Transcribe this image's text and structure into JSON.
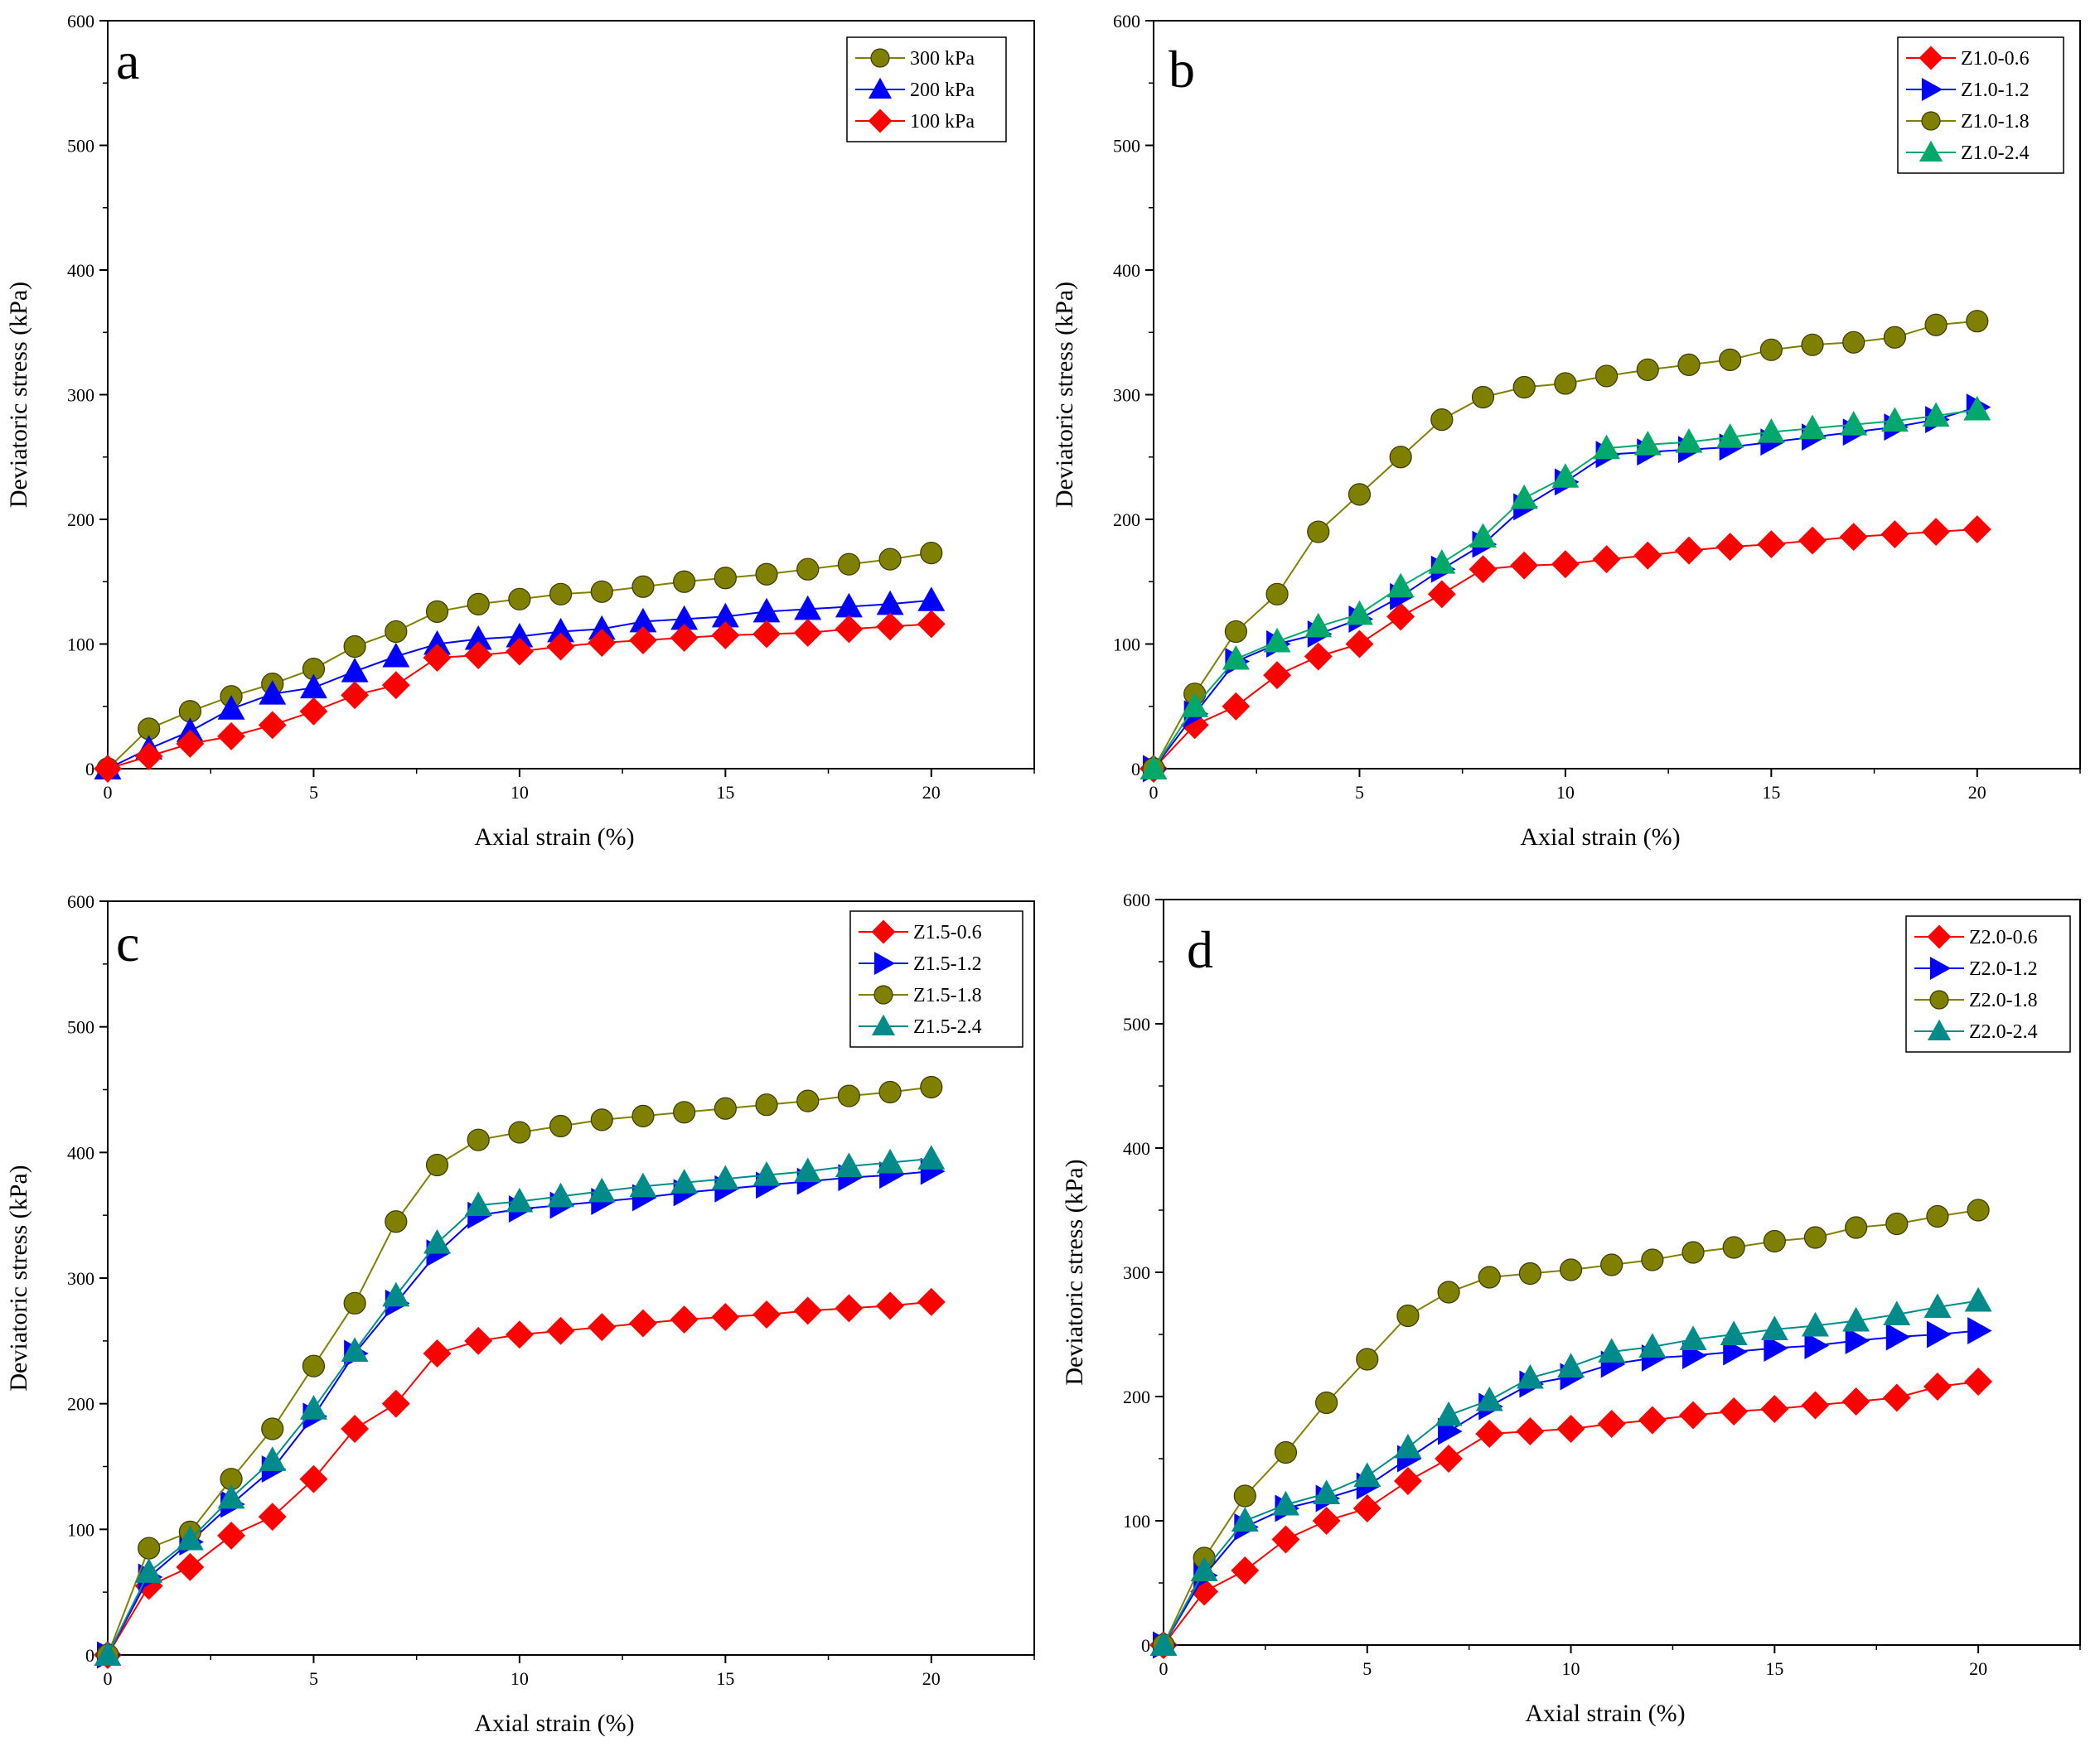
{
  "figure": {
    "chart_data": [
      {
        "type": "line",
        "panel_letter": "a",
        "xlabel": "Axial strain (%)",
        "ylabel": "Deviatoric stress (kPa)",
        "xlim": [
          0,
          22.5
        ],
        "ylim": [
          0,
          600
        ],
        "xticks": [
          0,
          5,
          10,
          15,
          20
        ],
        "yticks": [
          0,
          100,
          200,
          300,
          400,
          500,
          600
        ],
        "legend_position": "top-right",
        "series": [
          {
            "name": "300 kPa",
            "marker": "circle",
            "color": "#808000",
            "x": [
              0,
              1,
              2,
              3,
              4,
              5,
              6,
              7,
              8,
              9,
              10,
              11,
              12,
              13,
              14,
              15,
              16,
              17,
              18,
              19,
              20
            ],
            "y": [
              0,
              32,
              46,
              58,
              68,
              80,
              98,
              110,
              126,
              132,
              136,
              140,
              142,
              146,
              150,
              153,
              156,
              160,
              164,
              168,
              173
            ]
          },
          {
            "name": "200 kPa",
            "marker": "triangle-up",
            "color": "#0000ff",
            "x": [
              0,
              1,
              2,
              3,
              4,
              5,
              6,
              7,
              8,
              9,
              10,
              11,
              12,
              13,
              14,
              15,
              16,
              17,
              18,
              19,
              20
            ],
            "y": [
              0,
              16,
              30,
              48,
              60,
              65,
              78,
              90,
              100,
              104,
              106,
              110,
              112,
              118,
              120,
              122,
              126,
              128,
              130,
              132,
              135
            ]
          },
          {
            "name": "100 kPa",
            "marker": "diamond",
            "color": "#ff0000",
            "x": [
              0,
              1,
              2,
              3,
              4,
              5,
              6,
              7,
              8,
              9,
              10,
              11,
              12,
              13,
              14,
              15,
              16,
              17,
              18,
              19,
              20
            ],
            "y": [
              0,
              10,
              20,
              26,
              35,
              46,
              59,
              67,
              89,
              91,
              94,
              98,
              101,
              103,
              105,
              107,
              108,
              109,
              112,
              114,
              116
            ]
          }
        ]
      },
      {
        "type": "line",
        "panel_letter": "b",
        "xlabel": "Axial strain (%)",
        "ylabel": "Deviatoric stress (kPa)",
        "xlim": [
          0,
          22.5
        ],
        "ylim": [
          0,
          600
        ],
        "xticks": [
          0,
          5,
          10,
          15,
          20
        ],
        "yticks": [
          0,
          100,
          200,
          300,
          400,
          500,
          600
        ],
        "legend_position": "top-right",
        "series": [
          {
            "name": "Z1.0-0.6",
            "marker": "diamond",
            "color": "#ff0000",
            "x": [
              0,
              1,
              2,
              3,
              4,
              5,
              6,
              7,
              8,
              9,
              10,
              11,
              12,
              13,
              14,
              15,
              16,
              17,
              18,
              19,
              20
            ],
            "y": [
              0,
              35,
              50,
              75,
              90,
              100,
              122,
              140,
              160,
              163,
              164,
              168,
              171,
              175,
              178,
              180,
              183,
              186,
              188,
              190,
              192
            ]
          },
          {
            "name": "Z1.0-1.2",
            "marker": "triangle-right",
            "color": "#0000ff",
            "x": [
              0,
              1,
              2,
              3,
              4,
              5,
              6,
              7,
              8,
              9,
              10,
              11,
              12,
              13,
              14,
              15,
              16,
              17,
              18,
              19,
              20
            ],
            "y": [
              0,
              44,
              86,
              100,
              108,
              120,
              138,
              160,
              180,
              210,
              230,
              252,
              254,
              256,
              258,
              262,
              266,
              270,
              274,
              280,
              290
            ]
          },
          {
            "name": "Z1.0-1.8",
            "marker": "circle",
            "color": "#808000",
            "x": [
              0,
              1,
              2,
              3,
              4,
              5,
              6,
              7,
              8,
              9,
              10,
              11,
              12,
              13,
              14,
              15,
              16,
              17,
              18,
              19,
              20
            ],
            "y": [
              0,
              60,
              110,
              140,
              190,
              220,
              250,
              280,
              298,
              306,
              309,
              315,
              320,
              324,
              328,
              336,
              340,
              342,
              346,
              356,
              359
            ]
          },
          {
            "name": "Z1.0-2.4",
            "marker": "triangle-up",
            "color": "#00a86b",
            "x": [
              0,
              1,
              2,
              3,
              4,
              5,
              6,
              7,
              8,
              9,
              10,
              11,
              12,
              13,
              14,
              15,
              16,
              17,
              18,
              19,
              20
            ],
            "y": [
              0,
              50,
              88,
              102,
              114,
              124,
              146,
              165,
              186,
              217,
              234,
              257,
              260,
              262,
              266,
              270,
              273,
              276,
              279,
              283,
              288
            ]
          }
        ]
      },
      {
        "type": "line",
        "panel_letter": "c",
        "xlabel": "Axial strain (%)",
        "ylabel": "Deviatoric stress (kPa)",
        "xlim": [
          0,
          22.5
        ],
        "ylim": [
          0,
          600
        ],
        "xticks": [
          0,
          5,
          10,
          15,
          20
        ],
        "yticks": [
          0,
          100,
          200,
          300,
          400,
          500,
          600
        ],
        "legend_position": "top-right",
        "series": [
          {
            "name": "Z1.5-0.6",
            "marker": "diamond",
            "color": "#ff0000",
            "x": [
              0,
              1,
              2,
              3,
              4,
              5,
              6,
              7,
              8,
              9,
              10,
              11,
              12,
              13,
              14,
              15,
              16,
              17,
              18,
              19,
              20
            ],
            "y": [
              0,
              55,
              70,
              95,
              110,
              140,
              180,
              200,
              240,
              250,
              255,
              258,
              261,
              264,
              267,
              269,
              271,
              274,
              276,
              278,
              281
            ]
          },
          {
            "name": "Z1.5-1.2",
            "marker": "triangle-right",
            "color": "#0000ff",
            "x": [
              0,
              1,
              2,
              3,
              4,
              5,
              6,
              7,
              8,
              9,
              10,
              11,
              12,
              13,
              14,
              15,
              16,
              17,
              18,
              19,
              20
            ],
            "y": [
              0,
              62,
              90,
              120,
              148,
              190,
              240,
              280,
              320,
              350,
              355,
              358,
              361,
              364,
              368,
              371,
              374,
              377,
              380,
              382,
              385
            ]
          },
          {
            "name": "Z1.5-1.8",
            "marker": "circle",
            "color": "#808000",
            "x": [
              0,
              1,
              2,
              3,
              4,
              5,
              6,
              7,
              8,
              9,
              10,
              11,
              12,
              13,
              14,
              15,
              16,
              17,
              18,
              19,
              20
            ],
            "y": [
              0,
              85,
              98,
              140,
              180,
              230,
              280,
              345,
              390,
              410,
              416,
              421,
              426,
              429,
              432,
              435,
              438,
              441,
              445,
              448,
              452
            ]
          },
          {
            "name": "Z1.5-2.4",
            "marker": "triangle-up",
            "color": "#008b8b",
            "x": [
              0,
              1,
              2,
              3,
              4,
              5,
              6,
              7,
              8,
              9,
              10,
              11,
              12,
              13,
              14,
              15,
              16,
              17,
              18,
              19,
              20
            ],
            "y": [
              0,
              66,
              92,
              125,
              155,
              196,
              242,
              286,
              328,
              358,
              361,
              365,
              369,
              373,
              376,
              379,
              382,
              385,
              389,
              392,
              395
            ]
          }
        ]
      },
      {
        "type": "line",
        "panel_letter": "d",
        "xlabel": "Axial strain (%)",
        "ylabel": "Deviatoric stress (kPa)",
        "xlim": [
          0,
          22.5
        ],
        "ylim": [
          0,
          600
        ],
        "xticks": [
          0,
          5,
          10,
          15,
          20
        ],
        "yticks": [
          0,
          100,
          200,
          300,
          400,
          500,
          600
        ],
        "legend_position": "top-right",
        "series": [
          {
            "name": "Z2.0-0.6",
            "marker": "diamond",
            "color": "#ff0000",
            "x": [
              0,
              1,
              2,
              3,
              4,
              5,
              6,
              7,
              8,
              9,
              10,
              11,
              12,
              13,
              14,
              15,
              16,
              17,
              18,
              19,
              20
            ],
            "y": [
              0,
              43,
              60,
              85,
              100,
              110,
              132,
              150,
              170,
              172,
              174,
              178,
              181,
              185,
              188,
              190,
              193,
              196,
              199,
              208,
              212
            ]
          },
          {
            "name": "Z2.0-1.2",
            "marker": "triangle-right",
            "color": "#0000ff",
            "x": [
              0,
              1,
              2,
              3,
              4,
              5,
              6,
              7,
              8,
              9,
              10,
              11,
              12,
              13,
              14,
              15,
              16,
              17,
              18,
              19,
              20
            ],
            "y": [
              0,
              56,
              95,
              110,
              118,
              128,
              150,
              172,
              192,
              210,
              216,
              226,
              231,
              233,
              236,
              239,
              241,
              245,
              248,
              250,
              253
            ]
          },
          {
            "name": "Z2.0-1.8",
            "marker": "circle",
            "color": "#808000",
            "x": [
              0,
              1,
              2,
              3,
              4,
              5,
              6,
              7,
              8,
              9,
              10,
              11,
              12,
              13,
              14,
              15,
              16,
              17,
              18,
              19,
              20
            ],
            "y": [
              0,
              70,
              120,
              155,
              195,
              230,
              265,
              284,
              296,
              299,
              302,
              306,
              310,
              316,
              320,
              325,
              328,
              336,
              339,
              345,
              350
            ]
          },
          {
            "name": "Z2.0-2.4",
            "marker": "triangle-up",
            "color": "#008b8b",
            "x": [
              0,
              1,
              2,
              3,
              4,
              5,
              6,
              7,
              8,
              9,
              10,
              11,
              12,
              13,
              14,
              15,
              16,
              17,
              18,
              19,
              20
            ],
            "y": [
              0,
              60,
              100,
              113,
              122,
              136,
              159,
              185,
              197,
              215,
              224,
              236,
              240,
              246,
              250,
              254,
              257,
              261,
              266,
              272,
              277
            ]
          }
        ]
      }
    ]
  }
}
